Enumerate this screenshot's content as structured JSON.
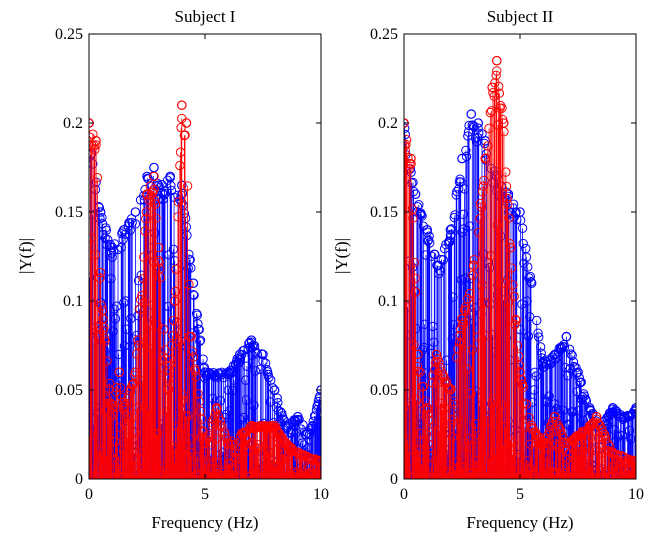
{
  "chart_data": [
    {
      "type": "stem",
      "title": "Subject I",
      "xlabel": "Frequency (Hz)",
      "ylabel": "|Y(f)|",
      "xlim": [
        0,
        10
      ],
      "ylim": [
        0,
        0.25
      ],
      "xticks": [
        "0",
        "5",
        "10"
      ],
      "yticks": [
        "0",
        "0.05",
        "0.1",
        "0.15",
        "0.2",
        "0.25"
      ],
      "grid": false,
      "colors": {
        "series_1": "#0000ff",
        "series_2": "#ff0000"
      },
      "series": [
        {
          "x": [
            0,
            0.5,
            1,
            1.5,
            2,
            2.5,
            2.8,
            3,
            3.5,
            4,
            4.5,
            5,
            6,
            6.5,
            7,
            7.5,
            8,
            8.5,
            9,
            9.5,
            10
          ],
          "y": [
            0.2,
            0.15,
            0.13,
            0.14,
            0.15,
            0.17,
            0.175,
            0.165,
            0.17,
            0.165,
            0.11,
            0.06,
            0.06,
            0.07,
            0.078,
            0.07,
            0.05,
            0.03,
            0.035,
            0.025,
            0.05
          ]
        },
        {
          "x": [
            0,
            0.3,
            0.6,
            1,
            1.3,
            1.5,
            2,
            2.5,
            2.8,
            3,
            3.4,
            3.7,
            4,
            4.2,
            4.4,
            5,
            5.5,
            6,
            7,
            8,
            8.5,
            9,
            10
          ],
          "y": [
            0.2,
            0.19,
            0.09,
            0.04,
            0.06,
            0.04,
            0.06,
            0.16,
            0.17,
            0.13,
            0.05,
            0.1,
            0.21,
            0.2,
            0.08,
            0.02,
            0.04,
            0.02,
            0.03,
            0.03,
            0.02,
            0.015,
            0.01
          ]
        }
      ]
    },
    {
      "type": "stem",
      "title": "Subject II",
      "xlabel": "Frequency (Hz)",
      "ylabel": "|Y(f)|",
      "xlim": [
        0,
        10
      ],
      "ylim": [
        0,
        0.25
      ],
      "xticks": [
        "0",
        "5",
        "10"
      ],
      "yticks": [
        "0",
        "0.05",
        "0.1",
        "0.15",
        "0.2",
        "0.25"
      ],
      "grid": false,
      "colors": {
        "series_1": "#0000ff",
        "series_2": "#ff0000"
      },
      "series": [
        {
          "x": [
            0,
            0.5,
            1,
            1.5,
            2,
            2.5,
            2.9,
            3.2,
            3.5,
            4,
            4.5,
            5,
            5.5,
            6,
            6.5,
            7,
            7.5,
            8,
            8.5,
            9,
            9.5,
            10
          ],
          "y": [
            0.2,
            0.16,
            0.14,
            0.12,
            0.14,
            0.18,
            0.205,
            0.2,
            0.19,
            0.17,
            0.16,
            0.15,
            0.11,
            0.065,
            0.07,
            0.08,
            0.06,
            0.04,
            0.03,
            0.04,
            0.035,
            0.04
          ]
        },
        {
          "x": [
            0,
            0.3,
            0.6,
            1,
            1.4,
            2,
            2.5,
            3,
            3.5,
            3.8,
            4,
            4.3,
            4.6,
            5,
            5.5,
            6,
            6.5,
            7,
            8,
            8.3,
            9,
            10
          ],
          "y": [
            0.2,
            0.18,
            0.07,
            0.04,
            0.07,
            0.05,
            0.09,
            0.12,
            0.18,
            0.22,
            0.235,
            0.2,
            0.13,
            0.06,
            0.03,
            0.02,
            0.035,
            0.02,
            0.03,
            0.035,
            0.015,
            0.01
          ]
        }
      ]
    }
  ]
}
